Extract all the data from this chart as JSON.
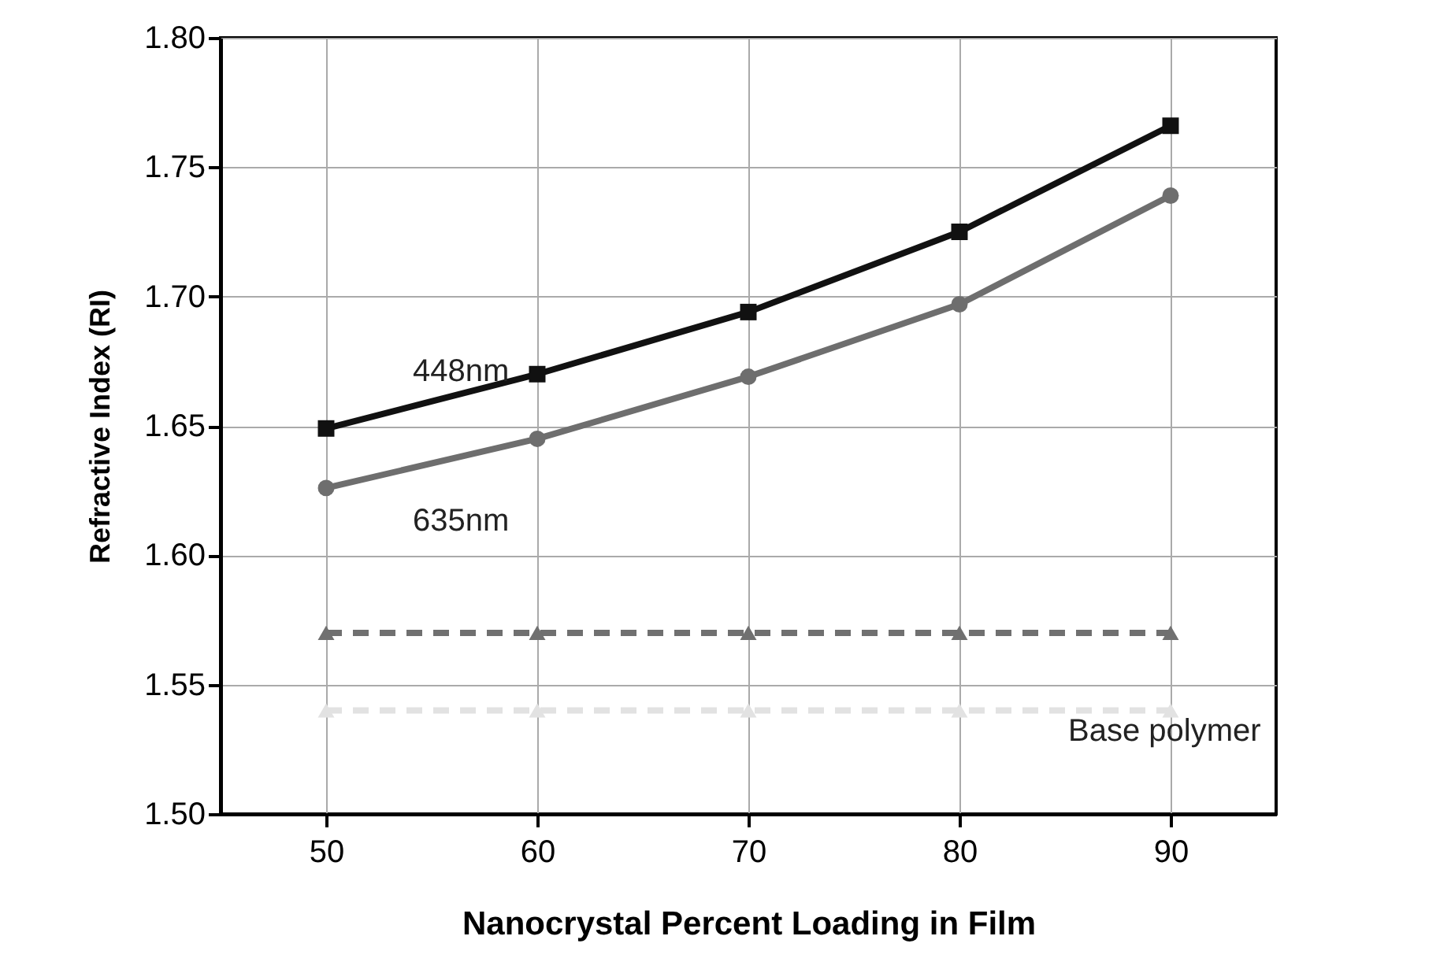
{
  "chart_data": {
    "type": "line",
    "xlabel": "Nanocrystal Percent Loading in Film",
    "ylabel": "Refractive Index (RI)",
    "x": [
      50,
      60,
      70,
      80,
      90
    ],
    "series": [
      {
        "name": "448nm",
        "color": "#111111",
        "marker": "square",
        "line_style": "solid",
        "values": [
          1.649,
          1.67,
          1.694,
          1.725,
          1.766
        ]
      },
      {
        "name": "635nm",
        "color": "#6e6e6e",
        "marker": "circle",
        "line_style": "solid",
        "values": [
          1.626,
          1.645,
          1.669,
          1.697,
          1.739
        ]
      },
      {
        "color": "#707070",
        "marker": "triangle",
        "line_style": "dashed",
        "values": [
          1.57,
          1.57,
          1.57,
          1.57,
          1.57
        ]
      },
      {
        "name": "Base polymer",
        "color": "#e2e2e2",
        "marker": "triangle",
        "line_style": "dashed",
        "values": [
          1.54,
          1.54,
          1.54,
          1.54,
          1.54
        ]
      }
    ],
    "xlim": [
      45,
      95
    ],
    "xticks": [
      50,
      60,
      70,
      80,
      90
    ],
    "ylim": [
      1.5,
      1.8
    ],
    "yticks": [
      {
        "value": 1.5,
        "label": "1.50"
      },
      1.55,
      {
        "value": 1.6,
        "label": "1.60"
      },
      1.65,
      {
        "value": 1.7,
        "label": "1.70"
      },
      1.75,
      {
        "value": 1.8,
        "label": "1.80"
      }
    ],
    "grid": true,
    "legend": false
  }
}
